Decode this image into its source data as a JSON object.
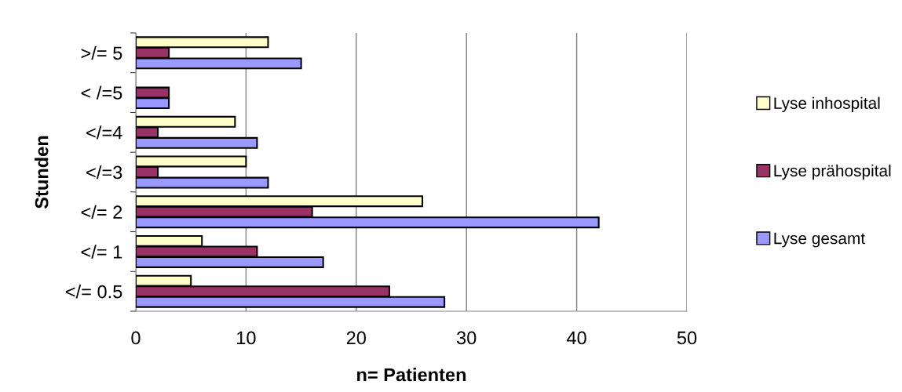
{
  "chart_data": {
    "type": "bar",
    "orientation": "horizontal",
    "xlabel": "n= Patienten",
    "ylabel": "Stunden",
    "categories": [
      ">/= 5",
      "< /=5",
      "</=4",
      "</=3",
      "</= 2",
      "</= 1",
      "</= 0.5"
    ],
    "series": [
      {
        "name": "Lyse inhospital",
        "color": "#ffffcc",
        "values": [
          12,
          null,
          9,
          10,
          26,
          6,
          5
        ]
      },
      {
        "name": "Lyse prähospital",
        "color": "#993366",
        "values": [
          3,
          3,
          2,
          2,
          16,
          11,
          23
        ]
      },
      {
        "name": "Lyse gesamt",
        "color": "#9999ff",
        "values": [
          15,
          3,
          11,
          12,
          42,
          17,
          28
        ]
      }
    ],
    "xlim": [
      0,
      50
    ],
    "xticks": [
      0,
      10,
      20,
      30,
      40,
      50
    ],
    "grid": "x",
    "legend": "right"
  }
}
